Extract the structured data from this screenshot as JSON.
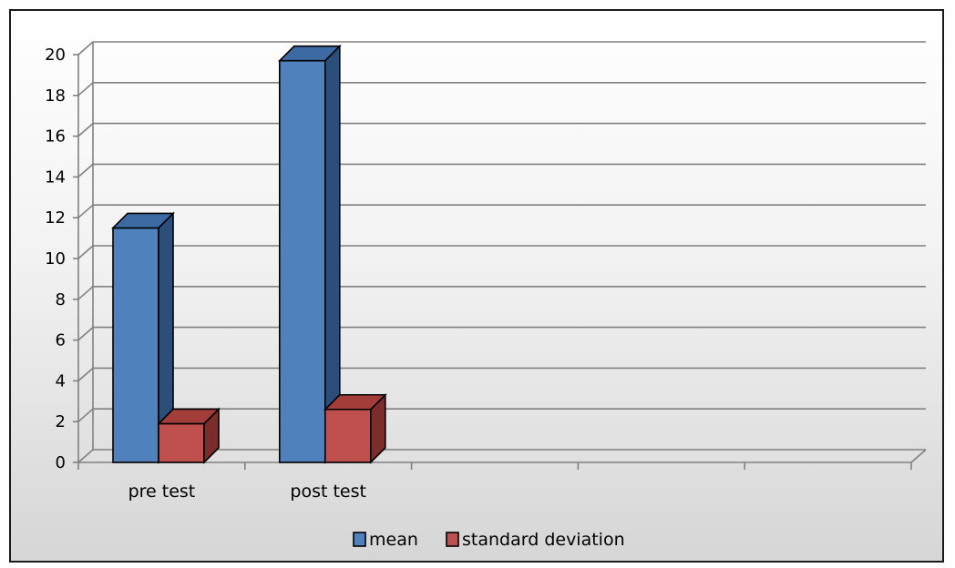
{
  "chart_data": {
    "type": "bar",
    "categories": [
      "pre test",
      "post test",
      "",
      "",
      ""
    ],
    "series": [
      {
        "name": "mean",
        "values": [
          11.5,
          19.7,
          null,
          null,
          null
        ]
      },
      {
        "name": "standard deviation",
        "values": [
          1.9,
          2.6,
          null,
          null,
          null
        ]
      }
    ],
    "title": "",
    "xlabel": "",
    "ylabel": "",
    "ylim": [
      0,
      20
    ],
    "yticks": [
      0,
      2,
      4,
      6,
      8,
      10,
      12,
      14,
      16,
      18,
      20
    ],
    "grid": true,
    "legend_position": "bottom",
    "style": "3d-clustered-column"
  },
  "colors": {
    "mean_front": "#4f81bd",
    "mean_side": "#2b4e7a",
    "mean_top": "#3d6aa3",
    "sd_front": "#c0504d",
    "sd_side": "#7a2d2b",
    "sd_top": "#a33d3a",
    "grid": "#808080"
  }
}
